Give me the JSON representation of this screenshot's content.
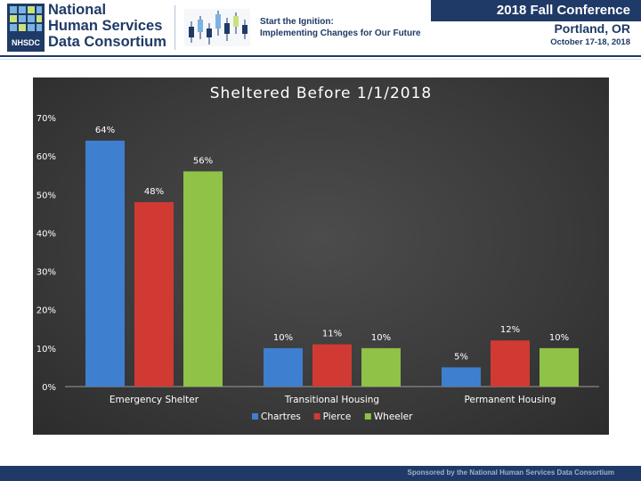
{
  "banner": {
    "org_lines": [
      "National",
      "Human Services",
      "Data Consortium"
    ],
    "logo_text": "NHSDC",
    "tagline_lines": [
      "Start the Ignition:",
      "Implementing Changes for Our Future"
    ],
    "conference_title": "2018 Fall Conference",
    "city": "Portland, OR",
    "dates": "October 17-18, 2018"
  },
  "footer": {
    "text": "Sponsored by the National Human Services Data Consortium"
  },
  "colors": {
    "navy": "#1f3a66",
    "chartres": "#3f7fcf",
    "pierce": "#d03a33",
    "wheeler": "#8fc246",
    "panel": "#3a3a3a"
  },
  "chart_data": {
    "type": "bar",
    "title": "Sheltered Before 1/1/2018",
    "categories": [
      "Emergency Shelter",
      "Transitional Housing",
      "Permanent Housing"
    ],
    "series": [
      {
        "name": "Chartres",
        "values": [
          64,
          10,
          5
        ],
        "labels": [
          "64%",
          "10%",
          "5%"
        ],
        "color": "#3f7fcf"
      },
      {
        "name": "Pierce",
        "values": [
          48,
          11,
          12
        ],
        "labels": [
          "48%",
          "11%",
          "12%"
        ],
        "color": "#d03a33"
      },
      {
        "name": "Wheeler",
        "values": [
          56,
          10,
          10
        ],
        "labels": [
          "56%",
          "10%",
          "10%"
        ],
        "color": "#8fc246"
      }
    ],
    "yticks": [
      0,
      10,
      20,
      30,
      40,
      50,
      60,
      70
    ],
    "ytick_labels": [
      "0%",
      "10%",
      "20%",
      "30%",
      "40%",
      "50%",
      "60%",
      "70%"
    ],
    "ylim": [
      0,
      70
    ],
    "grid": false,
    "legend_position": "bottom"
  }
}
